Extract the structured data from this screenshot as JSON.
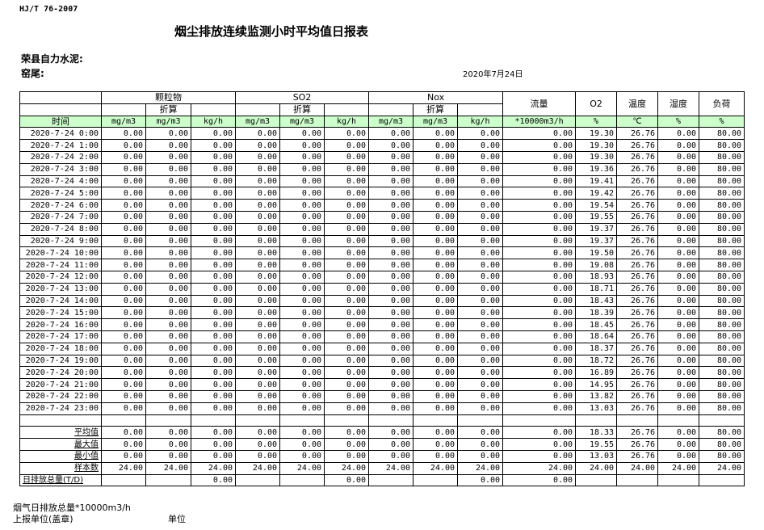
{
  "header": {
    "standard": "HJ/T  76-2007",
    "title": "烟尘排放连续监测小时平均值日报表",
    "company": "荣县自力水泥:",
    "kiln": "窑尾:",
    "date": "2020年7月24日"
  },
  "colors": {
    "unit_row_bg": "#ccffcc"
  },
  "columns": {
    "groups": [
      "颗粒物",
      "SO2",
      "Nox"
    ],
    "converted": "折算",
    "others": [
      "流量",
      "O2",
      "温度",
      "湿度",
      "负荷"
    ],
    "time_label": "时间",
    "units": [
      "mg/m3",
      "mg/m3",
      "kg/h",
      "mg/m3",
      "mg/m3",
      "kg/h",
      "mg/m3",
      "mg/m3",
      "kg/h",
      "*10000m3/h",
      "%",
      "℃",
      "%",
      "%"
    ]
  },
  "rows": [
    [
      "2020-7-24 0:00",
      "0.00",
      "0.00",
      "0.00",
      "0.00",
      "0.00",
      "0.00",
      "0.00",
      "0.00",
      "0.00",
      "0.00",
      "19.30",
      "26.76",
      "0.00",
      "80.00"
    ],
    [
      "2020-7-24 1:00",
      "0.00",
      "0.00",
      "0.00",
      "0.00",
      "0.00",
      "0.00",
      "0.00",
      "0.00",
      "0.00",
      "0.00",
      "19.30",
      "26.76",
      "0.00",
      "80.00"
    ],
    [
      "2020-7-24 2:00",
      "0.00",
      "0.00",
      "0.00",
      "0.00",
      "0.00",
      "0.00",
      "0.00",
      "0.00",
      "0.00",
      "0.00",
      "19.30",
      "26.76",
      "0.00",
      "80.00"
    ],
    [
      "2020-7-24 3:00",
      "0.00",
      "0.00",
      "0.00",
      "0.00",
      "0.00",
      "0.00",
      "0.00",
      "0.00",
      "0.00",
      "0.00",
      "19.36",
      "26.76",
      "0.00",
      "80.00"
    ],
    [
      "2020-7-24 4:00",
      "0.00",
      "0.00",
      "0.00",
      "0.00",
      "0.00",
      "0.00",
      "0.00",
      "0.00",
      "0.00",
      "0.00",
      "19.41",
      "26.76",
      "0.00",
      "80.00"
    ],
    [
      "2020-7-24 5:00",
      "0.00",
      "0.00",
      "0.00",
      "0.00",
      "0.00",
      "0.00",
      "0.00",
      "0.00",
      "0.00",
      "0.00",
      "19.42",
      "26.76",
      "0.00",
      "80.00"
    ],
    [
      "2020-7-24 6:00",
      "0.00",
      "0.00",
      "0.00",
      "0.00",
      "0.00",
      "0.00",
      "0.00",
      "0.00",
      "0.00",
      "0.00",
      "19.54",
      "26.76",
      "0.00",
      "80.00"
    ],
    [
      "2020-7-24 7:00",
      "0.00",
      "0.00",
      "0.00",
      "0.00",
      "0.00",
      "0.00",
      "0.00",
      "0.00",
      "0.00",
      "0.00",
      "19.55",
      "26.76",
      "0.00",
      "80.00"
    ],
    [
      "2020-7-24 8:00",
      "0.00",
      "0.00",
      "0.00",
      "0.00",
      "0.00",
      "0.00",
      "0.00",
      "0.00",
      "0.00",
      "0.00",
      "19.37",
      "26.76",
      "0.00",
      "80.00"
    ],
    [
      "2020-7-24 9:00",
      "0.00",
      "0.00",
      "0.00",
      "0.00",
      "0.00",
      "0.00",
      "0.00",
      "0.00",
      "0.00",
      "0.00",
      "19.37",
      "26.76",
      "0.00",
      "80.00"
    ],
    [
      "2020-7-24 10:00",
      "0.00",
      "0.00",
      "0.00",
      "0.00",
      "0.00",
      "0.00",
      "0.00",
      "0.00",
      "0.00",
      "0.00",
      "19.50",
      "26.76",
      "0.00",
      "80.00"
    ],
    [
      "2020-7-24 11:00",
      "0.00",
      "0.00",
      "0.00",
      "0.00",
      "0.00",
      "0.00",
      "0.00",
      "0.00",
      "0.00",
      "0.00",
      "19.08",
      "26.76",
      "0.00",
      "80.00"
    ],
    [
      "2020-7-24 12:00",
      "0.00",
      "0.00",
      "0.00",
      "0.00",
      "0.00",
      "0.00",
      "0.00",
      "0.00",
      "0.00",
      "0.00",
      "18.93",
      "26.76",
      "0.00",
      "80.00"
    ],
    [
      "2020-7-24 13:00",
      "0.00",
      "0.00",
      "0.00",
      "0.00",
      "0.00",
      "0.00",
      "0.00",
      "0.00",
      "0.00",
      "0.00",
      "18.71",
      "26.76",
      "0.00",
      "80.00"
    ],
    [
      "2020-7-24 14:00",
      "0.00",
      "0.00",
      "0.00",
      "0.00",
      "0.00",
      "0.00",
      "0.00",
      "0.00",
      "0.00",
      "0.00",
      "18.43",
      "26.76",
      "0.00",
      "80.00"
    ],
    [
      "2020-7-24 15:00",
      "0.00",
      "0.00",
      "0.00",
      "0.00",
      "0.00",
      "0.00",
      "0.00",
      "0.00",
      "0.00",
      "0.00",
      "18.39",
      "26.76",
      "0.00",
      "80.00"
    ],
    [
      "2020-7-24 16:00",
      "0.00",
      "0.00",
      "0.00",
      "0.00",
      "0.00",
      "0.00",
      "0.00",
      "0.00",
      "0.00",
      "0.00",
      "18.45",
      "26.76",
      "0.00",
      "80.00"
    ],
    [
      "2020-7-24 17:00",
      "0.00",
      "0.00",
      "0.00",
      "0.00",
      "0.00",
      "0.00",
      "0.00",
      "0.00",
      "0.00",
      "0.00",
      "18.64",
      "26.76",
      "0.00",
      "80.00"
    ],
    [
      "2020-7-24 18:00",
      "0.00",
      "0.00",
      "0.00",
      "0.00",
      "0.00",
      "0.00",
      "0.00",
      "0.00",
      "0.00",
      "0.00",
      "18.37",
      "26.76",
      "0.00",
      "80.00"
    ],
    [
      "2020-7-24 19:00",
      "0.00",
      "0.00",
      "0.00",
      "0.00",
      "0.00",
      "0.00",
      "0.00",
      "0.00",
      "0.00",
      "0.00",
      "18.72",
      "26.76",
      "0.00",
      "80.00"
    ],
    [
      "2020-7-24 20:00",
      "0.00",
      "0.00",
      "0.00",
      "0.00",
      "0.00",
      "0.00",
      "0.00",
      "0.00",
      "0.00",
      "0.00",
      "16.89",
      "26.76",
      "0.00",
      "80.00"
    ],
    [
      "2020-7-24 21:00",
      "0.00",
      "0.00",
      "0.00",
      "0.00",
      "0.00",
      "0.00",
      "0.00",
      "0.00",
      "0.00",
      "0.00",
      "14.95",
      "26.76",
      "0.00",
      "80.00"
    ],
    [
      "2020-7-24 22:00",
      "0.00",
      "0.00",
      "0.00",
      "0.00",
      "0.00",
      "0.00",
      "0.00",
      "0.00",
      "0.00",
      "0.00",
      "13.82",
      "26.76",
      "0.00",
      "80.00"
    ],
    [
      "2020-7-24 23:00",
      "0.00",
      "0.00",
      "0.00",
      "0.00",
      "0.00",
      "0.00",
      "0.00",
      "0.00",
      "0.00",
      "0.00",
      "13.03",
      "26.76",
      "0.00",
      "80.00"
    ]
  ],
  "stats": [
    [
      "平均值",
      "0.00",
      "0.00",
      "0.00",
      "0.00",
      "0.00",
      "0.00",
      "0.00",
      "0.00",
      "0.00",
      "0.00",
      "18.33",
      "26.76",
      "0.00",
      "80.00"
    ],
    [
      "最大值",
      "0.00",
      "0.00",
      "0.00",
      "0.00",
      "0.00",
      "0.00",
      "0.00",
      "0.00",
      "0.00",
      "0.00",
      "19.55",
      "26.76",
      "0.00",
      "80.00"
    ],
    [
      "最小值",
      "0.00",
      "0.00",
      "0.00",
      "0.00",
      "0.00",
      "0.00",
      "0.00",
      "0.00",
      "0.00",
      "0.00",
      "13.03",
      "26.76",
      "0.00",
      "80.00"
    ],
    [
      "样本数",
      "24.00",
      "24.00",
      "24.00",
      "24.00",
      "24.00",
      "24.00",
      "24.00",
      "24.00",
      "24.00",
      "24.00",
      "24.00",
      "24.00",
      "24.00",
      "24.00"
    ],
    [
      "日排放总量(T/D)",
      "",
      "",
      "0.00",
      "",
      "",
      "0.00",
      "",
      "",
      "0.00",
      "0.00",
      "",
      "",
      "",
      ""
    ]
  ],
  "footer": {
    "flue_total": "烟气日排放总量*10000m3/h",
    "reporting_unit": "上报单位(盖章)",
    "unit": "单位"
  }
}
